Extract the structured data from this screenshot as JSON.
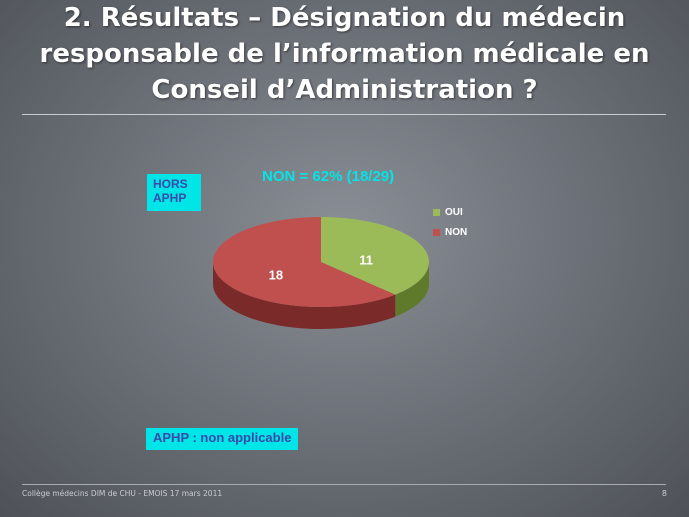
{
  "slide": {
    "title_lines": [
      "2. Résultats – Désignation du médecin",
      "responsable de l’information médicale en",
      "Conseil d’Administration ?"
    ],
    "badge_hors": [
      "HORS",
      "APHP"
    ],
    "badge_aphp": "APHP : non applicable",
    "footer_left": "Collège médecins DIM de CHU - EMOIS 17 mars 2011",
    "page_number": "8"
  },
  "chart_data": {
    "type": "pie",
    "title": "NON = 62% (18/29)",
    "slices": [
      {
        "label": "OUI",
        "value": 11,
        "color": "#9bbb59",
        "side_color": "#5f7a2b"
      },
      {
        "label": "NON",
        "value": 18,
        "color": "#c0504d",
        "side_color": "#7a2a28"
      }
    ],
    "legend": {
      "position": "right",
      "entries": [
        "OUI",
        "NON"
      ]
    },
    "style": "3d"
  }
}
